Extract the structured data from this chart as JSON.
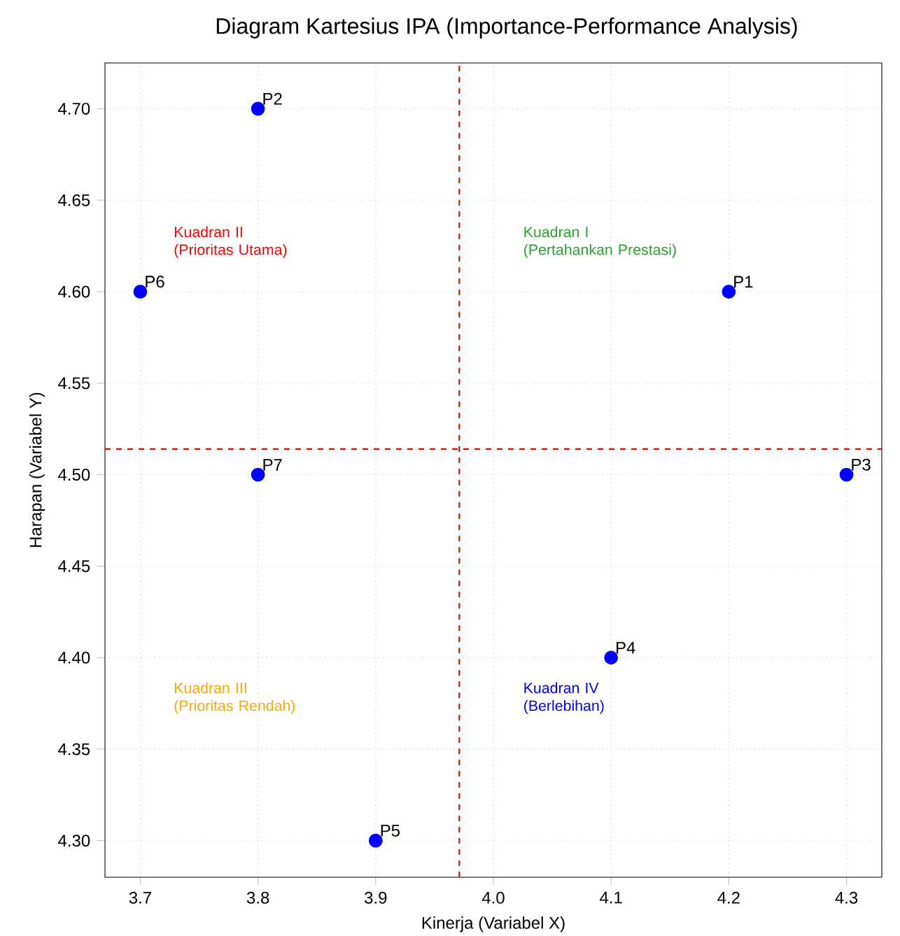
{
  "chart_data": {
    "type": "scatter",
    "title": "Diagram Kartesius IPA (Importance-Performance Analysis)",
    "xlabel": "Kinerja (Variabel X)",
    "ylabel": "Harapan (Variabel Y)",
    "series": [
      {
        "name": "P1",
        "color": "#0000ff",
        "x": [
          4.2
        ],
        "values": [
          4.6
        ]
      },
      {
        "name": "P2",
        "color": "#0000ff",
        "x": [
          3.8
        ],
        "values": [
          4.7
        ]
      },
      {
        "name": "P3",
        "color": "#0000ff",
        "x": [
          4.3
        ],
        "values": [
          4.5
        ]
      },
      {
        "name": "P4",
        "color": "#0000ff",
        "x": [
          4.1
        ],
        "values": [
          4.4
        ]
      },
      {
        "name": "P5",
        "color": "#0000ff",
        "x": [
          3.9
        ],
        "values": [
          4.3
        ]
      },
      {
        "name": "P6",
        "color": "#0000ff",
        "x": [
          3.7
        ],
        "values": [
          4.6
        ]
      },
      {
        "name": "P7",
        "color": "#0000ff",
        "x": [
          3.8
        ],
        "values": [
          4.5
        ]
      }
    ],
    "xlim": [
      3.67,
      4.33
    ],
    "ylim": [
      4.28,
      4.725
    ],
    "xticks": [
      3.7,
      3.8,
      3.9,
      {
        "value": 4,
        "label": "4.0"
      },
      4.1,
      4.2,
      4.3
    ],
    "yticks": [
      {
        "value": 4.3,
        "label": "4.30"
      },
      4.35,
      {
        "value": 4.4,
        "label": "4.40"
      },
      4.45,
      {
        "value": 4.5,
        "label": "4.50"
      },
      4.55,
      {
        "value": 4.6,
        "label": "4.60"
      },
      4.65,
      {
        "value": 4.7,
        "label": "4.70"
      }
    ],
    "ref_lines": [
      {
        "axis": "x",
        "value": 3.971,
        "color": "#ff0000",
        "line_style": "dashed"
      },
      {
        "axis": "y",
        "value": 4.514,
        "color": "#ff0000",
        "line_style": "dashed"
      }
    ],
    "annotations": [
      "Kuadran I\n(Pertahankan Prestasi)",
      "Kuadran II\n(Prioritas Utama)",
      "Kuadran III\n(Prioritas Rendah)",
      "Kuadran IV\n(Berlebihan)"
    ],
    "grid": true,
    "marker": "circle"
  }
}
